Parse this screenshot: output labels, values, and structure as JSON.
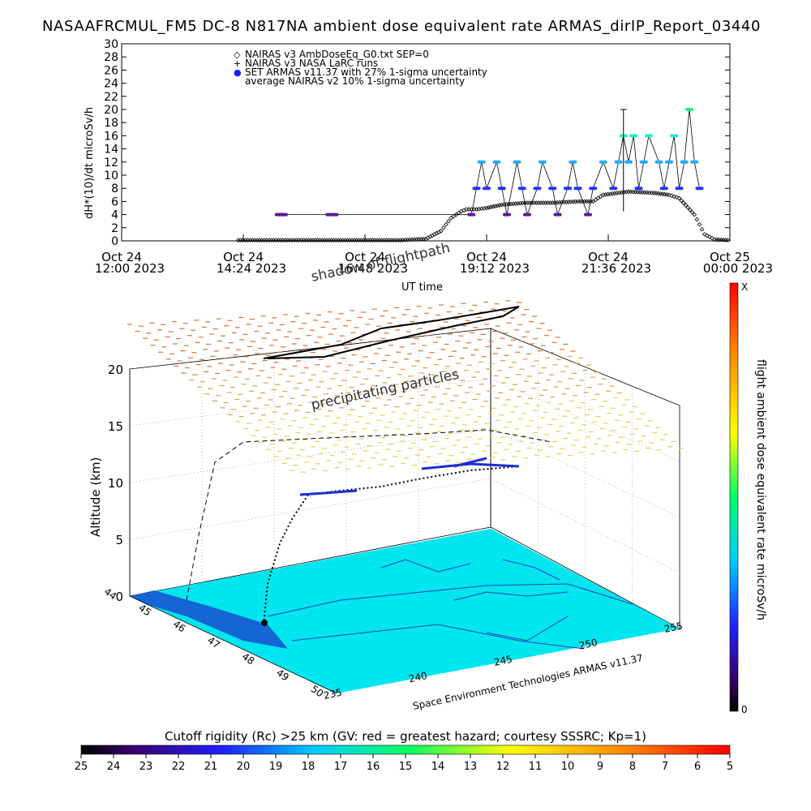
{
  "page_title": "NASAAFRCMUL_FM5 DC-8   N817NA ambient dose equivalent rate ARMAS_dirIP_Report_03440",
  "chart_data": [
    {
      "type": "scatter",
      "ylabel": "dH*(10)/dt microSv/h",
      "xlabel": "UT time",
      "ylim": [
        0,
        30
      ],
      "y_ticks": [
        0,
        2,
        4,
        6,
        8,
        10,
        12,
        14,
        16,
        18,
        20,
        22,
        24,
        26,
        28,
        30
      ],
      "x_ticks": [
        {
          "day": "Oct 24",
          "time": "12:00 2023"
        },
        {
          "day": "Oct 24",
          "time": "14:24 2023"
        },
        {
          "day": "Oct 24",
          "time": "16:48 2023"
        },
        {
          "day": "Oct 24",
          "time": "19:12 2023"
        },
        {
          "day": "Oct 24",
          "time": "21:36 2023"
        },
        {
          "day": "Oct 25",
          "time": "00:00 2023"
        }
      ],
      "xlim_hours": [
        12.0,
        24.0
      ],
      "legend": [
        {
          "symbol": "◇",
          "label": "NAIRAS v3 AmbDoseEq_G0.txt SEP=0",
          "color": "#000000"
        },
        {
          "symbol": "+",
          "label": "NAIRAS v3 NASA LaRC runs",
          "color": "#000000"
        },
        {
          "symbol": "●",
          "label": "SET ARMAS v11.37 with 27% 1-sigma uncertainty",
          "color": "#1a1aff"
        },
        {
          "symbol": "",
          "label": "average NAIRAS v2 10% 1-sigma uncertainty",
          "color": "#000000"
        }
      ],
      "legend_position": "top-left",
      "series": [
        {
          "name": "NAIRAS v3 AmbDoseEq_G0.txt SEP=0",
          "color": "#000000",
          "points": [
            [
              14.3,
              0.1
            ],
            [
              15.0,
              0.1
            ],
            [
              15.5,
              0.1
            ],
            [
              16.0,
              0.1
            ],
            [
              16.5,
              0.1
            ],
            [
              17.0,
              0.1
            ],
            [
              17.5,
              0.1
            ],
            [
              18.0,
              0.3
            ],
            [
              18.3,
              1.5
            ],
            [
              18.5,
              3.5
            ],
            [
              18.7,
              4.5
            ],
            [
              18.8,
              4.8
            ],
            [
              19.0,
              4.8
            ],
            [
              19.2,
              5.0
            ],
            [
              19.5,
              5.5
            ],
            [
              20.0,
              5.8
            ],
            [
              20.5,
              5.8
            ],
            [
              21.0,
              6.0
            ],
            [
              21.3,
              6.0
            ],
            [
              21.5,
              7.0
            ],
            [
              22.0,
              7.5
            ],
            [
              22.5,
              7.3
            ],
            [
              22.8,
              7.0
            ],
            [
              23.0,
              6.5
            ],
            [
              23.3,
              4.0
            ],
            [
              23.5,
              1.0
            ],
            [
              23.7,
              0.2
            ],
            [
              24.0,
              0.1
            ]
          ]
        },
        {
          "name": "SET ARMAS v11.37 with 27% 1-sigma uncertainty",
          "color": "#1a1aff",
          "points": [
            [
              15.1,
              4
            ],
            [
              15.2,
              4
            ],
            [
              16.1,
              4
            ],
            [
              16.2,
              4
            ],
            [
              18.9,
              4
            ],
            [
              19.0,
              8
            ],
            [
              19.1,
              12
            ],
            [
              19.2,
              8
            ],
            [
              19.4,
              12
            ],
            [
              19.5,
              8
            ],
            [
              19.6,
              4
            ],
            [
              19.8,
              12
            ],
            [
              19.9,
              8
            ],
            [
              20.0,
              4
            ],
            [
              20.2,
              8
            ],
            [
              20.3,
              12
            ],
            [
              20.5,
              8
            ],
            [
              20.6,
              4
            ],
            [
              20.8,
              8
            ],
            [
              20.9,
              12
            ],
            [
              21.0,
              8
            ],
            [
              21.2,
              4
            ],
            [
              21.3,
              8
            ],
            [
              21.5,
              12
            ],
            [
              21.7,
              8
            ],
            [
              21.8,
              12
            ],
            [
              21.9,
              16
            ],
            [
              22.0,
              12
            ],
            [
              22.1,
              16
            ],
            [
              22.2,
              8
            ],
            [
              22.3,
              12
            ],
            [
              22.4,
              16
            ],
            [
              22.6,
              12
            ],
            [
              22.7,
              8
            ],
            [
              22.8,
              12
            ],
            [
              22.9,
              16
            ],
            [
              23.0,
              8
            ],
            [
              23.1,
              12
            ],
            [
              23.2,
              20
            ],
            [
              23.3,
              12
            ],
            [
              23.4,
              8
            ]
          ]
        }
      ]
    },
    {
      "type": "scatter",
      "title": "",
      "annotations": [
        "shadow of flightpath",
        "precipitating particles"
      ],
      "zlabel": "Altitude (km)",
      "z_ticks": [
        0,
        5,
        10,
        15,
        20
      ],
      "lon_ticks": [
        235,
        240,
        245,
        250,
        255
      ],
      "lat_ticks": [
        44,
        45,
        46,
        47,
        48,
        49,
        50
      ],
      "credit": "Space Environment Technologies ARMAS v11.37",
      "colorbar_label": "flight ambient dose equivalent rate microSv/h",
      "colorbar_top": "X",
      "colorbar_bottom": "0"
    },
    {
      "type": "heatmap",
      "title": "Cutoff rigidity (Rc) >25 km (GV: red = greatest hazard; courtesy SSSRC; Kp=1)",
      "ticks": [
        25,
        24,
        23,
        22,
        21,
        20,
        19,
        18,
        17,
        16,
        15,
        14,
        13,
        12,
        11,
        10,
        9,
        8,
        7,
        6,
        5
      ]
    }
  ]
}
